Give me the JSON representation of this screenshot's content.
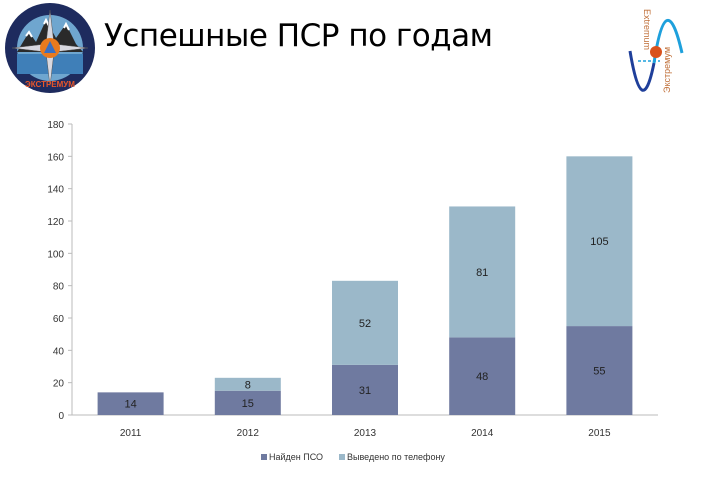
{
  "slide": {
    "title": "Успешные ПСР по годам",
    "logo_left_text": [
      "ПОИСКОВО-СПАСАТЕЛЬНЫЙ ОТРЯД",
      "ЭКСТРЕМУМ"
    ],
    "logo_right_text": [
      "Extremum",
      "Экстремум"
    ]
  },
  "colors": {
    "found": "#6f7aa0",
    "phone": "#9bb8c9"
  },
  "chart_data": {
    "type": "bar",
    "stacked": true,
    "categories": [
      "2011",
      "2012",
      "2013",
      "2014",
      "2015"
    ],
    "series": [
      {
        "name": "Найден ПСО",
        "values": [
          14,
          15,
          31,
          48,
          55
        ]
      },
      {
        "name": "Выведено по телефону",
        "values": [
          0,
          8,
          52,
          81,
          105
        ]
      }
    ],
    "ylim": [
      0,
      180
    ],
    "yticks": [
      "0",
      "20",
      "40",
      "60",
      "80",
      "100",
      "120",
      "140",
      "160",
      "180"
    ],
    "grid": false,
    "legend": "bottom"
  }
}
